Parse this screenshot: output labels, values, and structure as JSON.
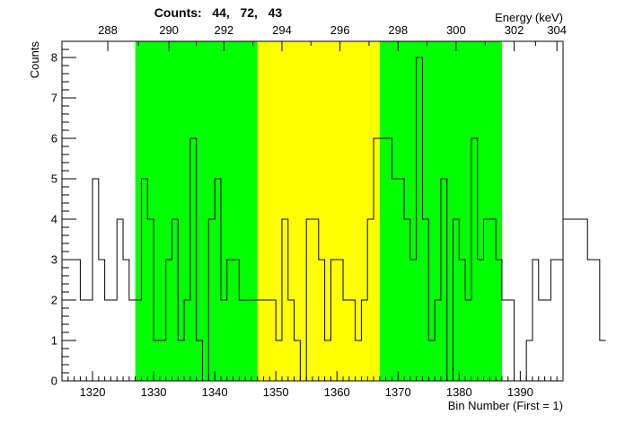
{
  "chart_data": {
    "type": "histogram",
    "title": "Counts:   44,   72,   43",
    "xlabel": "Bin Number (First = 1)",
    "ylabel": "Counts",
    "top_axis_label": "Energy (keV)",
    "xlim": [
      1315,
      1397
    ],
    "ylim": [
      0,
      8.4
    ],
    "x_ticks": [
      1320,
      1330,
      1340,
      1350,
      1360,
      1370,
      1380,
      1390
    ],
    "y_ticks": [
      0,
      1,
      2,
      3,
      4,
      5,
      6,
      7,
      8
    ],
    "top_ticks": [
      {
        "label": "288",
        "bin": 1322.5
      },
      {
        "label": "290",
        "bin": 1332.5
      },
      {
        "label": "292",
        "bin": 1341.5
      },
      {
        "label": "294",
        "bin": 1351.0
      },
      {
        "label": "296",
        "bin": 1360.5
      },
      {
        "label": "298",
        "bin": 1370.0
      },
      {
        "label": "300",
        "bin": 1379.5
      },
      {
        "label": "302",
        "bin": 1389.0
      },
      {
        "label": "304",
        "bin": 1396.0
      }
    ],
    "bin_start": 1316,
    "bin_width": 1,
    "counts": [
      3,
      3,
      2,
      2,
      5,
      3,
      2,
      2,
      4,
      3,
      2,
      2,
      5,
      4,
      1,
      1,
      3,
      4,
      1,
      2,
      6,
      1,
      0,
      4,
      5,
      2,
      3,
      3,
      2,
      2,
      2,
      2,
      2,
      2,
      1,
      4,
      2,
      1,
      0,
      4,
      4,
      3,
      1,
      3,
      3,
      2,
      2,
      1,
      2,
      4,
      6,
      6,
      6,
      5,
      5,
      4,
      3,
      8,
      4,
      1,
      2,
      5,
      0,
      4,
      3,
      2,
      6,
      3,
      4,
      4,
      3,
      2,
      2,
      0,
      0,
      1,
      3,
      2,
      2,
      3,
      3,
      4,
      4,
      4,
      4,
      3,
      3,
      1
    ],
    "regions": [
      {
        "name": "background-left",
        "from": 1327,
        "to": 1347,
        "color": "#00ff00"
      },
      {
        "name": "peak",
        "from": 1347,
        "to": 1367,
        "color": "#ffff00"
      },
      {
        "name": "background-right",
        "from": 1367,
        "to": 1387,
        "color": "#00ff00"
      }
    ],
    "line_color": "#000000"
  }
}
